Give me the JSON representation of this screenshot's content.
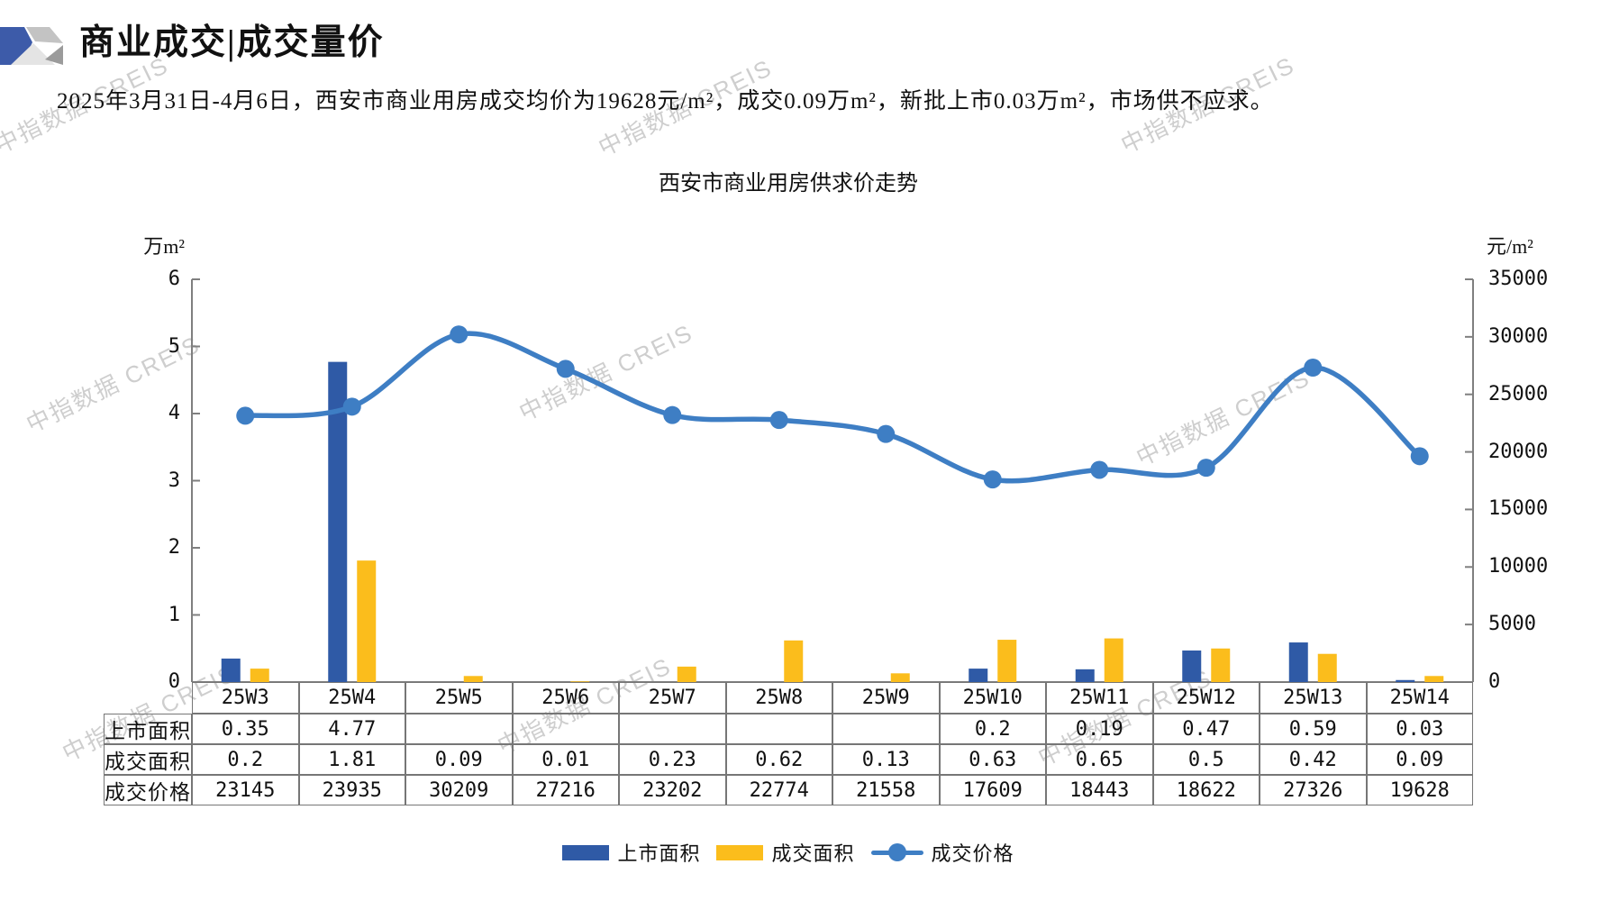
{
  "header": {
    "title": "商业成交|成交量价"
  },
  "summary": {
    "text": "2025年3月31日-4月6日，西安市商业用房成交均价为19628元/m²，成交0.09万m²，新批上市0.03万m²，市场供不应求。"
  },
  "watermark": {
    "text": "中指数据 CREIS"
  },
  "logo_colors": {
    "blue": "#3D5BA9",
    "gray": "#C3C3C3",
    "light": "#E4E4E4",
    "dark": "#9B9B9B"
  },
  "chart_data": {
    "type": "bar+line",
    "title": "西安市商业用房供求价走势",
    "categories": [
      "25W3",
      "25W4",
      "25W5",
      "25W6",
      "25W7",
      "25W8",
      "25W9",
      "25W10",
      "25W11",
      "25W12",
      "25W13",
      "25W14"
    ],
    "series": [
      {
        "name": "上市面积",
        "type": "bar",
        "axis": "left",
        "color": "#2F5AA6",
        "values": [
          0.35,
          4.77,
          null,
          null,
          null,
          null,
          null,
          0.2,
          0.19,
          0.47,
          0.59,
          0.03
        ]
      },
      {
        "name": "成交面积",
        "type": "bar",
        "axis": "left",
        "color": "#FBBD1C",
        "values": [
          0.2,
          1.81,
          0.09,
          0.01,
          0.23,
          0.62,
          0.13,
          0.63,
          0.65,
          0.5,
          0.42,
          0.09
        ]
      },
      {
        "name": "成交价格",
        "type": "line",
        "axis": "right",
        "color": "#3E7EC4",
        "values": [
          23145,
          23935,
          30209,
          27216,
          23202,
          22774,
          21558,
          17609,
          18443,
          18622,
          27326,
          19628
        ]
      }
    ],
    "left_axis": {
      "unit": "万m²",
      "min": 0,
      "max": 6,
      "step": 1
    },
    "right_axis": {
      "unit": "元/m²",
      "min": 0,
      "max": 35000,
      "step": 5000
    },
    "legend_position": "bottom",
    "grid": false,
    "axis_color": "#7F7F7F"
  }
}
